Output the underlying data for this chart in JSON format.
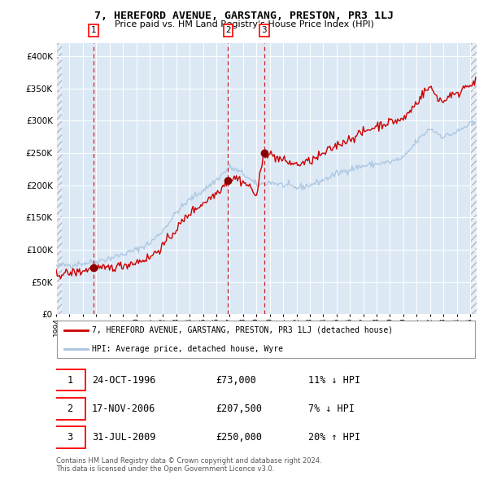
{
  "title": "7, HEREFORD AVENUE, GARSTANG, PRESTON, PR3 1LJ",
  "subtitle": "Price paid vs. HM Land Registry's House Price Index (HPI)",
  "sale_dates": [
    "1996-10-24",
    "2006-11-17",
    "2009-07-31"
  ],
  "sale_prices": [
    73000,
    207500,
    250000
  ],
  "sale_year_nums": [
    1996.79,
    2006.88,
    2009.58
  ],
  "sale_labels": [
    "1",
    "2",
    "3"
  ],
  "legend_line1": "7, HEREFORD AVENUE, GARSTANG, PRESTON, PR3 1LJ (detached house)",
  "legend_line2": "HPI: Average price, detached house, Wyre",
  "table_rows": [
    [
      "1",
      "24-OCT-1996",
      "£73,000",
      "11% ↓ HPI"
    ],
    [
      "2",
      "17-NOV-2006",
      "£207,500",
      "7% ↓ HPI"
    ],
    [
      "3",
      "31-JUL-2009",
      "£250,000",
      "20% ↑ HPI"
    ]
  ],
  "footer": "Contains HM Land Registry data © Crown copyright and database right 2024.\nThis data is licensed under the Open Government Licence v3.0.",
  "hpi_color": "#a8c4e0",
  "price_color": "#cc0000",
  "marker_color": "#8b0000",
  "dashed_color": "#cc0000",
  "plot_bg": "#dce9f5",
  "ylim": [
    0,
    420000
  ],
  "yticks": [
    0,
    50000,
    100000,
    150000,
    200000,
    250000,
    300000,
    350000,
    400000
  ],
  "xlim_start": 1994.0,
  "xlim_end": 2025.5,
  "hpi_anchors_x": [
    1994.0,
    1995.0,
    1996.0,
    1997.0,
    1998.0,
    1999.0,
    2000.0,
    2001.0,
    2002.0,
    2003.0,
    2004.0,
    2005.0,
    2006.0,
    2007.0,
    2008.0,
    2009.0,
    2010.0,
    2011.0,
    2012.0,
    2013.0,
    2014.0,
    2015.0,
    2016.0,
    2017.0,
    2018.0,
    2019.0,
    2020.0,
    2021.0,
    2022.0,
    2023.0,
    2024.0,
    2025.0
  ],
  "hpi_anchors_y": [
    75000,
    77000,
    79000,
    82000,
    87000,
    93000,
    100000,
    110000,
    130000,
    158000,
    178000,
    192000,
    208000,
    228000,
    218000,
    200000,
    205000,
    200000,
    196000,
    200000,
    208000,
    218000,
    225000,
    230000,
    233000,
    236000,
    242000,
    268000,
    288000,
    275000,
    282000,
    295000
  ],
  "price_anchors_x": [
    1994.0,
    1995.0,
    1996.0,
    1996.79,
    1997.5,
    1998.0,
    1999.0,
    2000.0,
    2001.0,
    2002.0,
    2003.0,
    2004.0,
    2005.0,
    2006.0,
    2006.88,
    2007.5,
    2008.0,
    2008.5,
    2009.0,
    2009.58,
    2010.0,
    2011.0,
    2012.0,
    2013.0,
    2014.0,
    2015.0,
    2016.0,
    2017.0,
    2018.0,
    2019.0,
    2020.0,
    2021.0,
    2021.5,
    2022.0,
    2022.5,
    2023.0,
    2023.5,
    2024.0,
    2024.5,
    2025.0
  ],
  "price_anchors_y": [
    62000,
    64000,
    67000,
    73000,
    70000,
    72000,
    76000,
    81000,
    88000,
    106000,
    132000,
    157000,
    172000,
    188000,
    207500,
    212000,
    205000,
    198000,
    183000,
    250000,
    248000,
    238000,
    232000,
    237000,
    248000,
    262000,
    272000,
    282000,
    292000,
    298000,
    302000,
    328000,
    343000,
    352000,
    338000,
    328000,
    342000,
    338000,
    352000,
    358000
  ],
  "noise_seed": 42,
  "hpi_noise_std": 2500,
  "price_noise_std": 3500
}
